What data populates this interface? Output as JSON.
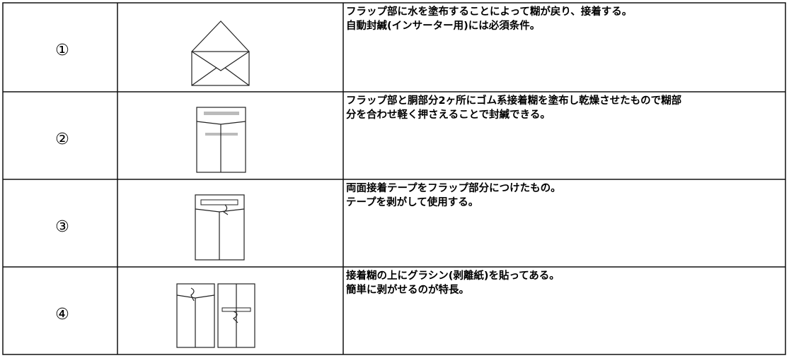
{
  "table": {
    "rows": [
      {
        "number": "①",
        "lines": [
          "フラップ部に水を塗布することによって糊が戻り、接着する。",
          "自動封緘(インサーター用)には必須条件。"
        ]
      },
      {
        "number": "②",
        "lines": [
          "フラップ部と胴部分2ヶ所にゴム系接着糊を塗布し乾燥させたもので糊部",
          "分を合わせ軽く押さえることで封緘できる。"
        ]
      },
      {
        "number": "③",
        "lines": [
          "両面接着テープをフラップ部分につけたもの。",
          "テープを剥がして使用する。"
        ]
      },
      {
        "number": "④",
        "lines": [
          "接着糊の上にグラシン(剥離紙)を貼ってある。",
          "簡単に剥がせるのが特長。"
        ]
      }
    ]
  }
}
